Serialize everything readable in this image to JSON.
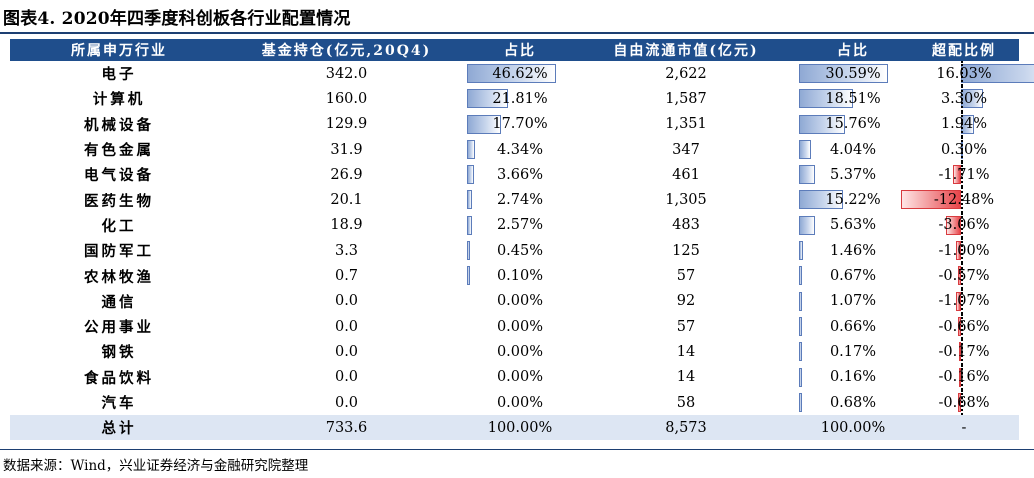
{
  "chart_data": {
    "type": "table",
    "title": "图表4. 2020年四季度科创板各行业配置情况",
    "columns": [
      "所属申万行业",
      "基金持仓(亿元,20Q4)",
      "占比",
      "自由流通市值(亿元)",
      "占比",
      "超配比例"
    ],
    "rows": [
      {
        "name": "电子",
        "holding": "342.0",
        "holding_pct": "46.62%",
        "mcap": "2,622",
        "mcap_pct": "30.59%",
        "over": "16.03%",
        "hp": 46.62,
        "mp": 30.59,
        "ov": 16.03
      },
      {
        "name": "计算机",
        "holding": "160.0",
        "holding_pct": "21.81%",
        "mcap": "1,587",
        "mcap_pct": "18.51%",
        "over": "3.30%",
        "hp": 21.81,
        "mp": 18.51,
        "ov": 3.3
      },
      {
        "name": "机械设备",
        "holding": "129.9",
        "holding_pct": "17.70%",
        "mcap": "1,351",
        "mcap_pct": "15.76%",
        "over": "1.94%",
        "hp": 17.7,
        "mp": 15.76,
        "ov": 1.94
      },
      {
        "name": "有色金属",
        "holding": "31.9",
        "holding_pct": "4.34%",
        "mcap": "347",
        "mcap_pct": "4.04%",
        "over": "0.30%",
        "hp": 4.34,
        "mp": 4.04,
        "ov": 0.3
      },
      {
        "name": "电气设备",
        "holding": "26.9",
        "holding_pct": "3.66%",
        "mcap": "461",
        "mcap_pct": "5.37%",
        "over": "-1.71%",
        "hp": 3.66,
        "mp": 5.37,
        "ov": -1.71
      },
      {
        "name": "医药生物",
        "holding": "20.1",
        "holding_pct": "2.74%",
        "mcap": "1,305",
        "mcap_pct": "15.22%",
        "over": "-12.48%",
        "hp": 2.74,
        "mp": 15.22,
        "ov": -12.48
      },
      {
        "name": "化工",
        "holding": "18.9",
        "holding_pct": "2.57%",
        "mcap": "483",
        "mcap_pct": "5.63%",
        "over": "-3.06%",
        "hp": 2.57,
        "mp": 5.63,
        "ov": -3.06
      },
      {
        "name": "国防军工",
        "holding": "3.3",
        "holding_pct": "0.45%",
        "mcap": "125",
        "mcap_pct": "1.46%",
        "over": "-1.00%",
        "hp": 0.45,
        "mp": 1.46,
        "ov": -1.0
      },
      {
        "name": "农林牧渔",
        "holding": "0.7",
        "holding_pct": "0.10%",
        "mcap": "57",
        "mcap_pct": "0.67%",
        "over": "-0.57%",
        "hp": 0.1,
        "mp": 0.67,
        "ov": -0.57
      },
      {
        "name": "通信",
        "holding": "0.0",
        "holding_pct": "0.00%",
        "mcap": "92",
        "mcap_pct": "1.07%",
        "over": "-1.07%",
        "hp": 0.0,
        "mp": 1.07,
        "ov": -1.07
      },
      {
        "name": "公用事业",
        "holding": "0.0",
        "holding_pct": "0.00%",
        "mcap": "57",
        "mcap_pct": "0.66%",
        "over": "-0.66%",
        "hp": 0.0,
        "mp": 0.66,
        "ov": -0.66
      },
      {
        "name": "钢铁",
        "holding": "0.0",
        "holding_pct": "0.00%",
        "mcap": "14",
        "mcap_pct": "0.17%",
        "over": "-0.17%",
        "hp": 0.0,
        "mp": 0.17,
        "ov": -0.17
      },
      {
        "name": "食品饮料",
        "holding": "0.0",
        "holding_pct": "0.00%",
        "mcap": "14",
        "mcap_pct": "0.16%",
        "over": "-0.16%",
        "hp": 0.0,
        "mp": 0.16,
        "ov": -0.16
      },
      {
        "name": "汽车",
        "holding": "0.0",
        "holding_pct": "0.00%",
        "mcap": "58",
        "mcap_pct": "0.68%",
        "over": "-0.68%",
        "hp": 0.0,
        "mp": 0.68,
        "ov": -0.68
      }
    ],
    "total": {
      "name": "总计",
      "holding": "733.6",
      "holding_pct": "100.00%",
      "mcap": "8,573",
      "mcap_pct": "100.00%",
      "over": "-"
    },
    "bar_scale_max_pct": 50,
    "over_scale_range_pct": [
      -14,
      18
    ],
    "colors": {
      "header": "#1f4e8c",
      "positive_bar": "#8fa9d4",
      "negative_bar": "#e8454a",
      "total_row": "#dde6f3"
    }
  },
  "source": "数据来源：Wind，兴业证券经济与金融研究院整理"
}
